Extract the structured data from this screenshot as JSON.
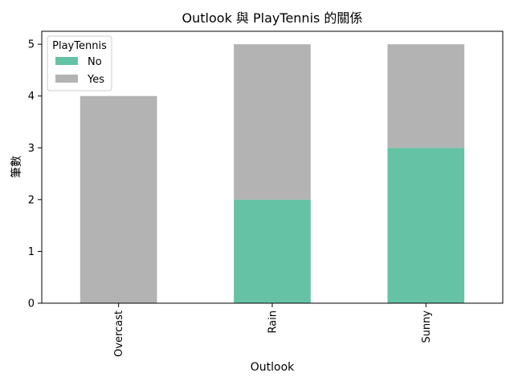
{
  "chart_data": {
    "type": "bar",
    "stacked": true,
    "title": "Outlook 與 PlayTennis 的關係",
    "xlabel": "Outlook",
    "ylabel": "筆數",
    "categories": [
      "Overcast",
      "Rain",
      "Sunny"
    ],
    "series": [
      {
        "name": "No",
        "values": [
          0,
          2,
          3
        ],
        "color": "#66c2a5"
      },
      {
        "name": "Yes",
        "values": [
          4,
          3,
          2
        ],
        "color": "#b3b3b3"
      }
    ],
    "ylim": [
      0,
      5.25
    ],
    "yticks": [
      0,
      1,
      2,
      3,
      4,
      5
    ],
    "legend": {
      "title": "PlayTennis",
      "position": "top-left"
    },
    "grid": false
  }
}
